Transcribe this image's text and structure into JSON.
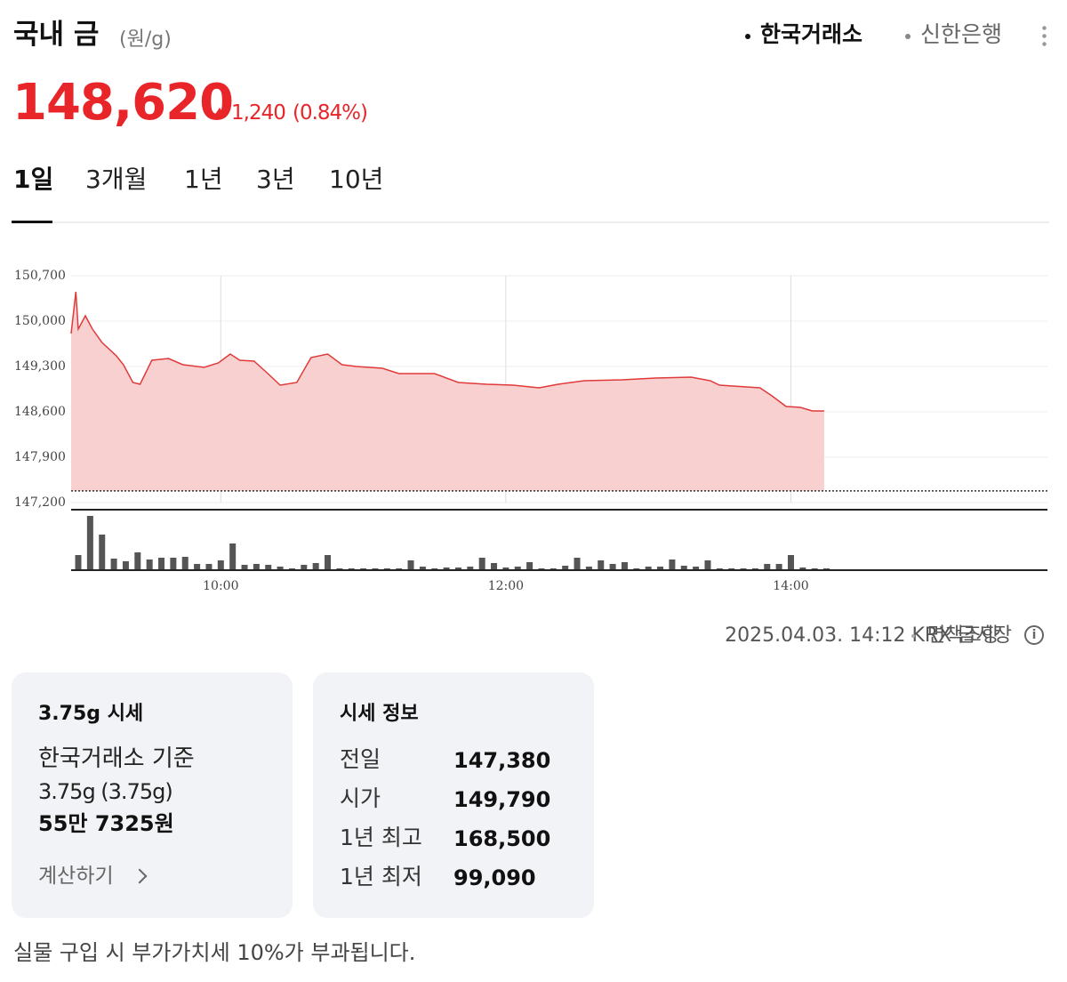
{
  "header": {
    "title": "국내 금",
    "unit": "(원/g)",
    "sources": [
      "한국거래소",
      "신한은행"
    ],
    "price": "148,620",
    "change": "1,240",
    "change_pct": "(0.84%)"
  },
  "tabs": [
    "1일",
    "3개월",
    "1년",
    "3년",
    "10년"
  ],
  "chart_data": {
    "type": "area",
    "color": "#e03a3a",
    "fill": "#f8d0d0",
    "grid": true,
    "x": [
      537,
      539,
      540,
      543,
      546,
      550,
      556,
      559,
      563,
      566,
      571,
      578,
      584,
      593,
      599,
      604,
      608,
      614,
      619,
      625,
      632,
      638,
      645,
      651,
      657,
      668,
      675,
      690,
      700,
      712,
      723,
      734,
      742,
      753,
      769,
      783,
      798,
      806,
      810,
      827,
      832,
      838,
      844,
      849,
      854
    ],
    "values": [
      149808,
      150453,
      149877,
      150082,
      149877,
      149671,
      149465,
      149327,
      149053,
      149026,
      149396,
      149424,
      149327,
      149286,
      149355,
      149492,
      149396,
      149382,
      149218,
      149012,
      149053,
      149437,
      149492,
      149327,
      149300,
      149272,
      149190,
      149190,
      149053,
      149026,
      149012,
      148971,
      149026,
      149080,
      149094,
      149122,
      149135,
      149080,
      149012,
      148971,
      148847,
      148682,
      148669,
      148614,
      148614
    ],
    "reference": 147380,
    "xlim": [
      537,
      948
    ],
    "xticks": [
      {
        "value": 600,
        "label": "10:00"
      },
      {
        "value": 720,
        "label": "12:00"
      },
      {
        "value": 840,
        "label": "14:00"
      }
    ],
    "ylim": [
      147200,
      150700
    ],
    "yticks": [
      {
        "value": 150700,
        "label": "150,700"
      },
      {
        "value": 150000,
        "label": "150,000"
      },
      {
        "value": 149300,
        "label": "149,300"
      },
      {
        "value": 148600,
        "label": "148,600"
      },
      {
        "value": 147900,
        "label": "147,900"
      },
      {
        "value": 147200,
        "label": "147,200"
      }
    ],
    "volume": {
      "type": "bar",
      "color": "#555555",
      "x": [
        540,
        545,
        550,
        555,
        560,
        565,
        570,
        575,
        580,
        585,
        590,
        595,
        600,
        605,
        610,
        615,
        620,
        625,
        630,
        635,
        640,
        645,
        650,
        655,
        660,
        665,
        670,
        675,
        680,
        685,
        690,
        695,
        700,
        705,
        710,
        715,
        720,
        725,
        730,
        735,
        740,
        745,
        750,
        755,
        760,
        765,
        770,
        775,
        780,
        785,
        790,
        795,
        800,
        805,
        810,
        815,
        820,
        825,
        830,
        835,
        840,
        845,
        850,
        855
      ],
      "values": [
        17,
        61,
        40,
        13,
        10,
        20,
        12,
        14,
        14,
        15,
        7,
        7,
        11,
        30,
        6,
        7,
        6,
        4,
        2,
        6,
        8,
        17,
        2,
        2,
        2,
        2,
        2,
        2,
        11,
        4,
        2,
        3,
        3,
        4,
        14,
        8,
        3,
        4,
        9,
        2,
        2,
        5,
        14,
        4,
        11,
        7,
        9,
        2,
        4,
        4,
        12,
        5,
        4,
        11,
        2,
        2,
        2,
        2,
        7,
        7,
        17,
        3,
        2,
        2
      ]
    }
  },
  "timestamp": "2025.04.03. 14:12 KRX 금시장",
  "disclaimer": "면책조항",
  "cards": [
    {
      "title": "3.75g 시세",
      "lines": [
        "한국거래소 기준",
        "3.75g (3.75g)"
      ],
      "amount": "55만 7325원",
      "action": "계산하기"
    },
    {
      "title": "시세 정보",
      "rows": [
        [
          "전일",
          "147,380"
        ],
        [
          "시가",
          "149,790"
        ],
        [
          "1년 최고",
          "168,500"
        ],
        [
          "1년 최저",
          "99,090"
        ]
      ]
    }
  ],
  "note": "실물 구입 시 부가가치세 10%가 부과됩니다."
}
